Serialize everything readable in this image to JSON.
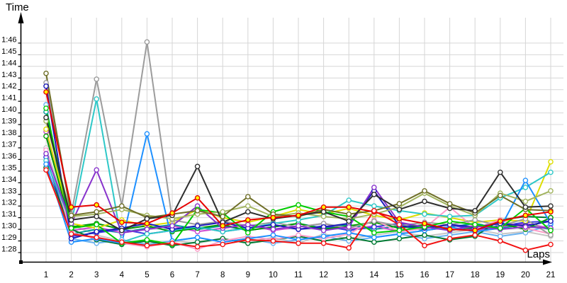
{
  "chart": {
    "ylabel": "Time",
    "xlabel": "Laps"
  },
  "chart_data": {
    "type": "line",
    "title": "",
    "xlabel": "Laps",
    "ylabel": "Time",
    "x": [
      1,
      2,
      3,
      4,
      5,
      6,
      7,
      8,
      9,
      10,
      11,
      12,
      13,
      14,
      15,
      16,
      17,
      18,
      19,
      20,
      21
    ],
    "y_tick_labels": [
      "1:28",
      "1:29",
      "1:30",
      "1:31",
      "1:32",
      "1:33",
      "1:34",
      "1:35",
      "1:36",
      "1:37",
      "1:38",
      "1:39",
      "1:40",
      "1:41",
      "1:42",
      "1:43",
      "1:44",
      "1:45",
      "1:46"
    ],
    "y_unit": "minutes:seconds",
    "ylim_seconds": [
      88,
      106
    ],
    "grid": true,
    "legend": "none",
    "marker": "open-circle",
    "series": [
      {
        "name": "silver",
        "color": "#c6c6c6",
        "marker_fill": "#ffffff",
        "values": [
          97.0,
          90.4,
          89.5,
          89.0,
          88.7,
          89.0,
          88.8,
          89.2,
          88.9,
          89.3,
          88.8,
          89.6,
          89.2,
          89.5,
          89.8,
          89.4,
          89.7,
          90.0,
          89.6,
          89.8,
          89.4
        ]
      },
      {
        "name": "sky-blue",
        "color": "#6ab2f0",
        "marker_fill": "#ffffff",
        "values": [
          100.7,
          89.2,
          88.8,
          89.1,
          88.7,
          89.0,
          89.3,
          88.9,
          89.2,
          88.8,
          89.1,
          89.4,
          89.0,
          89.3,
          89.6,
          89.2,
          89.5,
          89.8,
          89.4,
          89.7,
          90.4
        ]
      },
      {
        "name": "teal",
        "color": "#009a9a",
        "marker_fill": "#ffffff",
        "values": [
          100.1,
          89.6,
          90.0,
          89.7,
          90.1,
          90.4,
          90.0,
          90.3,
          89.9,
          90.2,
          90.5,
          90.1,
          90.4,
          90.0,
          90.3,
          89.9,
          90.2,
          90.5,
          90.1,
          90.4,
          90.0
        ]
      },
      {
        "name": "magenta",
        "color": "#cc4cd0",
        "marker_fill": "#ffffff",
        "values": [
          98.4,
          89.9,
          90.2,
          89.7,
          90.0,
          90.3,
          89.8,
          90.1,
          90.4,
          89.9,
          90.2,
          90.5,
          90.0,
          90.3,
          89.8,
          90.1,
          90.4,
          89.9,
          90.2,
          90.5,
          90.1
        ]
      },
      {
        "name": "royal-blue",
        "color": "#3a3ae0",
        "marker_fill": "#ffffff",
        "values": [
          96.2,
          89.4,
          89.7,
          90.0,
          89.6,
          89.9,
          90.2,
          89.8,
          90.1,
          90.4,
          90.0,
          90.3,
          89.9,
          90.2,
          90.5,
          90.1,
          90.4,
          90.0,
          90.3,
          90.6,
          90.7
        ]
      },
      {
        "name": "dark-green",
        "color": "#007a33",
        "marker_fill": "#ffffff",
        "values": [
          95.3,
          90.0,
          89.1,
          88.7,
          89.0,
          88.6,
          88.9,
          89.2,
          88.8,
          89.1,
          89.4,
          89.0,
          89.3,
          88.9,
          89.2,
          89.5,
          89.1,
          89.4,
          90.8,
          91.1,
          91.0
        ]
      },
      {
        "name": "green-mid",
        "color": "#009900",
        "marker_fill": "#ffffff",
        "values": [
          98.0,
          90.2,
          90.5,
          90.0,
          90.3,
          89.8,
          90.1,
          90.4,
          89.9,
          90.2,
          90.5,
          90.0,
          90.3,
          90.6,
          90.1,
          90.4,
          89.9,
          90.2,
          90.5,
          90.0,
          91.0
        ]
      },
      {
        "name": "yellow",
        "color": "#dede00",
        "marker_fill": "#ffffff",
        "values": [
          98.6,
          90.5,
          90.1,
          90.8,
          90.3,
          90.6,
          91.7,
          91.0,
          90.6,
          91.1,
          91.7,
          91.3,
          91.8,
          91.2,
          90.8,
          91.4,
          91.0,
          90.6,
          90.8,
          90.7,
          95.8
        ]
      },
      {
        "name": "pink",
        "color": "#ff9cc8",
        "marker_fill": "#ffffff",
        "values": [
          96.8,
          89.7,
          89.2,
          88.8,
          88.5,
          88.9,
          88.3,
          89.0,
          89.4,
          89.1,
          89.5,
          89.2,
          89.6,
          90.8,
          89.8,
          90.1,
          91.9,
          90.1,
          90.8,
          90.1,
          89.6
        ]
      },
      {
        "name": "gray",
        "color": "#9c9c9c",
        "marker_fill": "#ffffff",
        "values": [
          102.6,
          91.3,
          102.9,
          92.0,
          106.1,
          90.8,
          90.4,
          90.7,
          90.3,
          90.6,
          90.2,
          90.5,
          90.1,
          90.7,
          90.3,
          90.6,
          90.4,
          90.8,
          90.3,
          90.9,
          89.5
        ]
      },
      {
        "name": "turquoise",
        "color": "#2ec8c8",
        "marker_fill": "#ffffff",
        "values": [
          95.9,
          90.5,
          101.2,
          88.9,
          89.6,
          89.9,
          90.2,
          89.8,
          90.1,
          90.5,
          90.8,
          91.2,
          92.5,
          92.0,
          91.6,
          91.3,
          91.1,
          91.2,
          92.7,
          93.6,
          94.9
        ]
      },
      {
        "name": "dodger-blue",
        "color": "#1e90ff",
        "marker_fill": "#ffffff",
        "values": [
          95.6,
          88.9,
          89.2,
          88.8,
          98.2,
          89.0,
          89.3,
          88.9,
          89.2,
          89.5,
          89.1,
          89.4,
          89.7,
          89.3,
          89.6,
          89.9,
          90.2,
          89.8,
          90.1,
          94.2,
          90.5
        ]
      },
      {
        "name": "navy",
        "color": "#1a1ab8",
        "marker_fill": "#ffffff",
        "values": [
          102.3,
          89.2,
          89.8,
          90.1,
          90.5,
          90.0,
          90.3,
          90.6,
          90.1,
          90.4,
          90.0,
          90.2,
          90.5,
          93.3,
          90.3,
          90.1,
          90.4,
          90.2,
          90.5,
          90.3,
          90.7
        ]
      },
      {
        "name": "purple",
        "color": "#8833cc",
        "marker_fill": "#ffffff",
        "values": [
          96.5,
          90.5,
          95.1,
          89.7,
          90.0,
          90.3,
          92.0,
          90.1,
          90.4,
          90.0,
          90.3,
          89.9,
          90.2,
          93.6,
          90.6,
          90.2,
          89.9,
          90.3,
          90.0,
          90.2,
          90.1
        ]
      },
      {
        "name": "green-bright",
        "color": "#00cc00",
        "marker_fill": "#ffffff",
        "values": [
          100.4,
          90.1,
          90.4,
          88.8,
          89.1,
          88.7,
          91.7,
          91.4,
          89.7,
          91.5,
          92.1,
          91.5,
          91.1,
          89.7,
          89.9,
          90.2,
          90.7,
          90.4,
          90.1,
          91.8,
          89.9
        ]
      },
      {
        "name": "khaki",
        "color": "#a2b45f",
        "marker_fill": "#ffffff",
        "values": [
          99.3,
          91.1,
          91.3,
          91.7,
          91.2,
          90.9,
          91.3,
          91.5,
          92.0,
          91.1,
          91.4,
          91.1,
          90.9,
          91.3,
          91.9,
          93.1,
          92.0,
          91.2,
          93.1,
          92.4,
          93.3
        ]
      },
      {
        "name": "olive",
        "color": "#6f6f28",
        "marker_fill": "#ffffff",
        "values": [
          103.4,
          91.2,
          91.5,
          92.0,
          91.0,
          91.3,
          91.6,
          91.1,
          92.8,
          91.3,
          91.1,
          91.7,
          91.3,
          91.6,
          92.2,
          93.3,
          92.2,
          91.4,
          92.9,
          91.7,
          91.6
        ]
      },
      {
        "name": "black",
        "color": "#2e2e2e",
        "marker_fill": "#ffffff",
        "values": [
          99.6,
          90.8,
          91.1,
          89.9,
          90.9,
          91.2,
          95.4,
          90.6,
          91.5,
          90.9,
          91.2,
          91.5,
          90.7,
          93.0,
          91.7,
          92.4,
          91.8,
          91.6,
          94.9,
          91.9,
          92.0
        ]
      },
      {
        "name": "red-yellow-marker",
        "color": "#e60000",
        "marker_fill": "#ffff00",
        "values": [
          101.8,
          91.9,
          92.1,
          90.6,
          90.5,
          91.4,
          92.7,
          90.3,
          90.8,
          91.0,
          91.2,
          91.9,
          91.9,
          91.5,
          90.9,
          90.5,
          90.0,
          89.9,
          90.7,
          91.2,
          91.5
        ]
      },
      {
        "name": "red",
        "color": "#f21212",
        "marker_fill": "#ffffff",
        "values": [
          95.1,
          89.6,
          89.3,
          88.9,
          88.6,
          88.8,
          88.5,
          88.7,
          89.1,
          89.0,
          88.8,
          88.8,
          88.4,
          91.6,
          90.4,
          88.6,
          89.2,
          89.5,
          89.0,
          88.2,
          88.7
        ]
      }
    ]
  }
}
